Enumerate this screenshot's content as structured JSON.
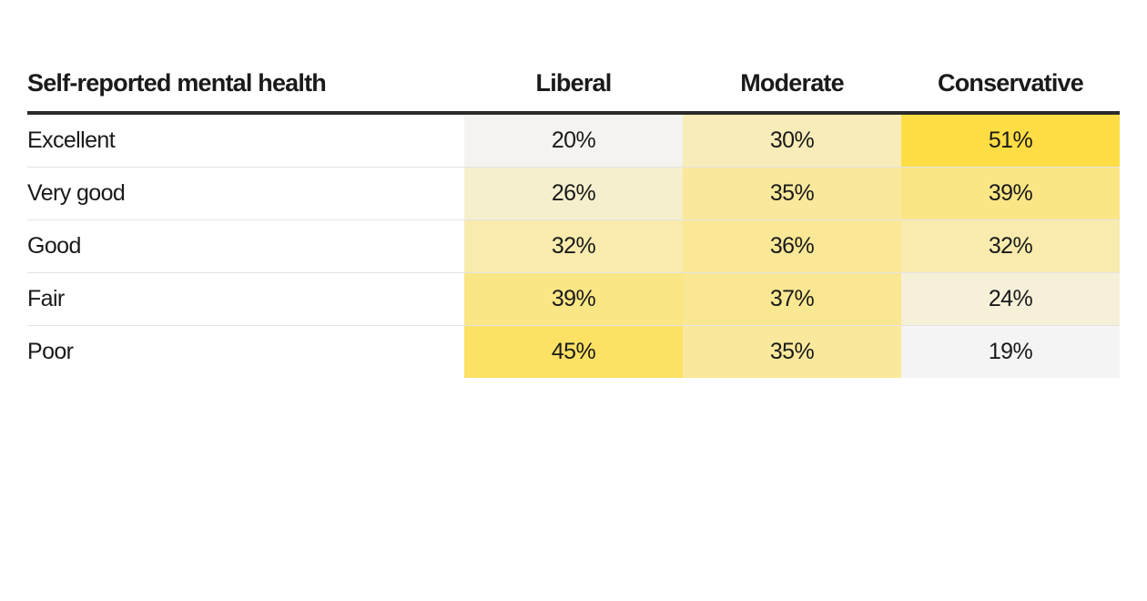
{
  "chart_data": {
    "type": "heatmap",
    "row_header": "Self-reported mental health",
    "columns": [
      "Liberal",
      "Moderate",
      "Conservative"
    ],
    "rows": [
      "Excellent",
      "Very good",
      "Good",
      "Fair",
      "Poor"
    ],
    "values": [
      [
        20,
        30,
        51
      ],
      [
        26,
        35,
        39
      ],
      [
        32,
        36,
        32
      ],
      [
        39,
        37,
        24
      ],
      [
        45,
        35,
        19
      ]
    ],
    "value_format": "percent",
    "color_scale": {
      "low": "#f4f4f4",
      "high": "#ffdd44"
    }
  }
}
